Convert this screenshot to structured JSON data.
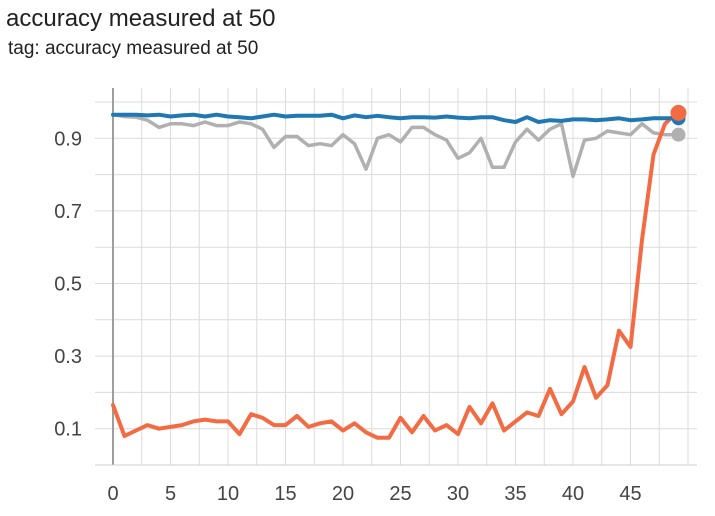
{
  "chart_data": {
    "type": "line",
    "title": "accuracy measured at 50",
    "subtitle": "tag: accuracy measured at 50",
    "xlabel": "",
    "ylabel": "",
    "xlim": [
      -1.5,
      50
    ],
    "ylim": [
      0.0,
      1.0
    ],
    "x_ticks": [
      0,
      5,
      10,
      15,
      20,
      25,
      30,
      35,
      40,
      45
    ],
    "y_ticks": [
      0.1,
      0.3,
      0.5,
      0.7,
      0.9
    ],
    "grid": true,
    "legend": "none",
    "x": [
      0,
      1,
      2,
      3,
      4,
      5,
      6,
      7,
      8,
      9,
      10,
      11,
      12,
      13,
      14,
      15,
      16,
      17,
      18,
      19,
      20,
      21,
      22,
      23,
      24,
      25,
      26,
      27,
      28,
      29,
      30,
      31,
      32,
      33,
      34,
      35,
      36,
      37,
      38,
      39,
      40,
      41,
      42,
      43,
      44,
      45,
      46,
      47,
      48,
      49
    ],
    "series": [
      {
        "color": "#1f77b4",
        "values": [
          0.965,
          0.965,
          0.965,
          0.963,
          0.965,
          0.96,
          0.963,
          0.965,
          0.96,
          0.965,
          0.96,
          0.958,
          0.955,
          0.96,
          0.965,
          0.96,
          0.962,
          0.962,
          0.962,
          0.965,
          0.955,
          0.963,
          0.958,
          0.962,
          0.958,
          0.955,
          0.958,
          0.958,
          0.957,
          0.96,
          0.957,
          0.955,
          0.958,
          0.958,
          0.95,
          0.945,
          0.958,
          0.945,
          0.95,
          0.948,
          0.952,
          0.952,
          0.95,
          0.952,
          0.955,
          0.95,
          0.952,
          0.955,
          0.955,
          0.955
        ]
      },
      {
        "color": "#b0b0b0",
        "values": [
          0.965,
          0.96,
          0.958,
          0.95,
          0.93,
          0.94,
          0.94,
          0.935,
          0.945,
          0.935,
          0.935,
          0.945,
          0.94,
          0.925,
          0.875,
          0.905,
          0.905,
          0.88,
          0.885,
          0.88,
          0.91,
          0.885,
          0.815,
          0.9,
          0.91,
          0.89,
          0.93,
          0.93,
          0.91,
          0.895,
          0.845,
          0.86,
          0.9,
          0.82,
          0.82,
          0.89,
          0.925,
          0.895,
          0.925,
          0.94,
          0.795,
          0.895,
          0.9,
          0.92,
          0.915,
          0.91,
          0.94,
          0.915,
          0.91,
          0.91
        ]
      },
      {
        "color": "#f26b43",
        "values": [
          0.165,
          0.08,
          0.095,
          0.11,
          0.1,
          0.105,
          0.11,
          0.12,
          0.125,
          0.12,
          0.12,
          0.085,
          0.14,
          0.13,
          0.11,
          0.11,
          0.135,
          0.105,
          0.115,
          0.12,
          0.095,
          0.115,
          0.09,
          0.075,
          0.075,
          0.13,
          0.09,
          0.135,
          0.095,
          0.11,
          0.085,
          0.16,
          0.115,
          0.17,
          0.095,
          0.12,
          0.145,
          0.135,
          0.21,
          0.14,
          0.175,
          0.27,
          0.185,
          0.22,
          0.37,
          0.325,
          0.62,
          0.855,
          0.94,
          0.97
        ]
      }
    ]
  }
}
